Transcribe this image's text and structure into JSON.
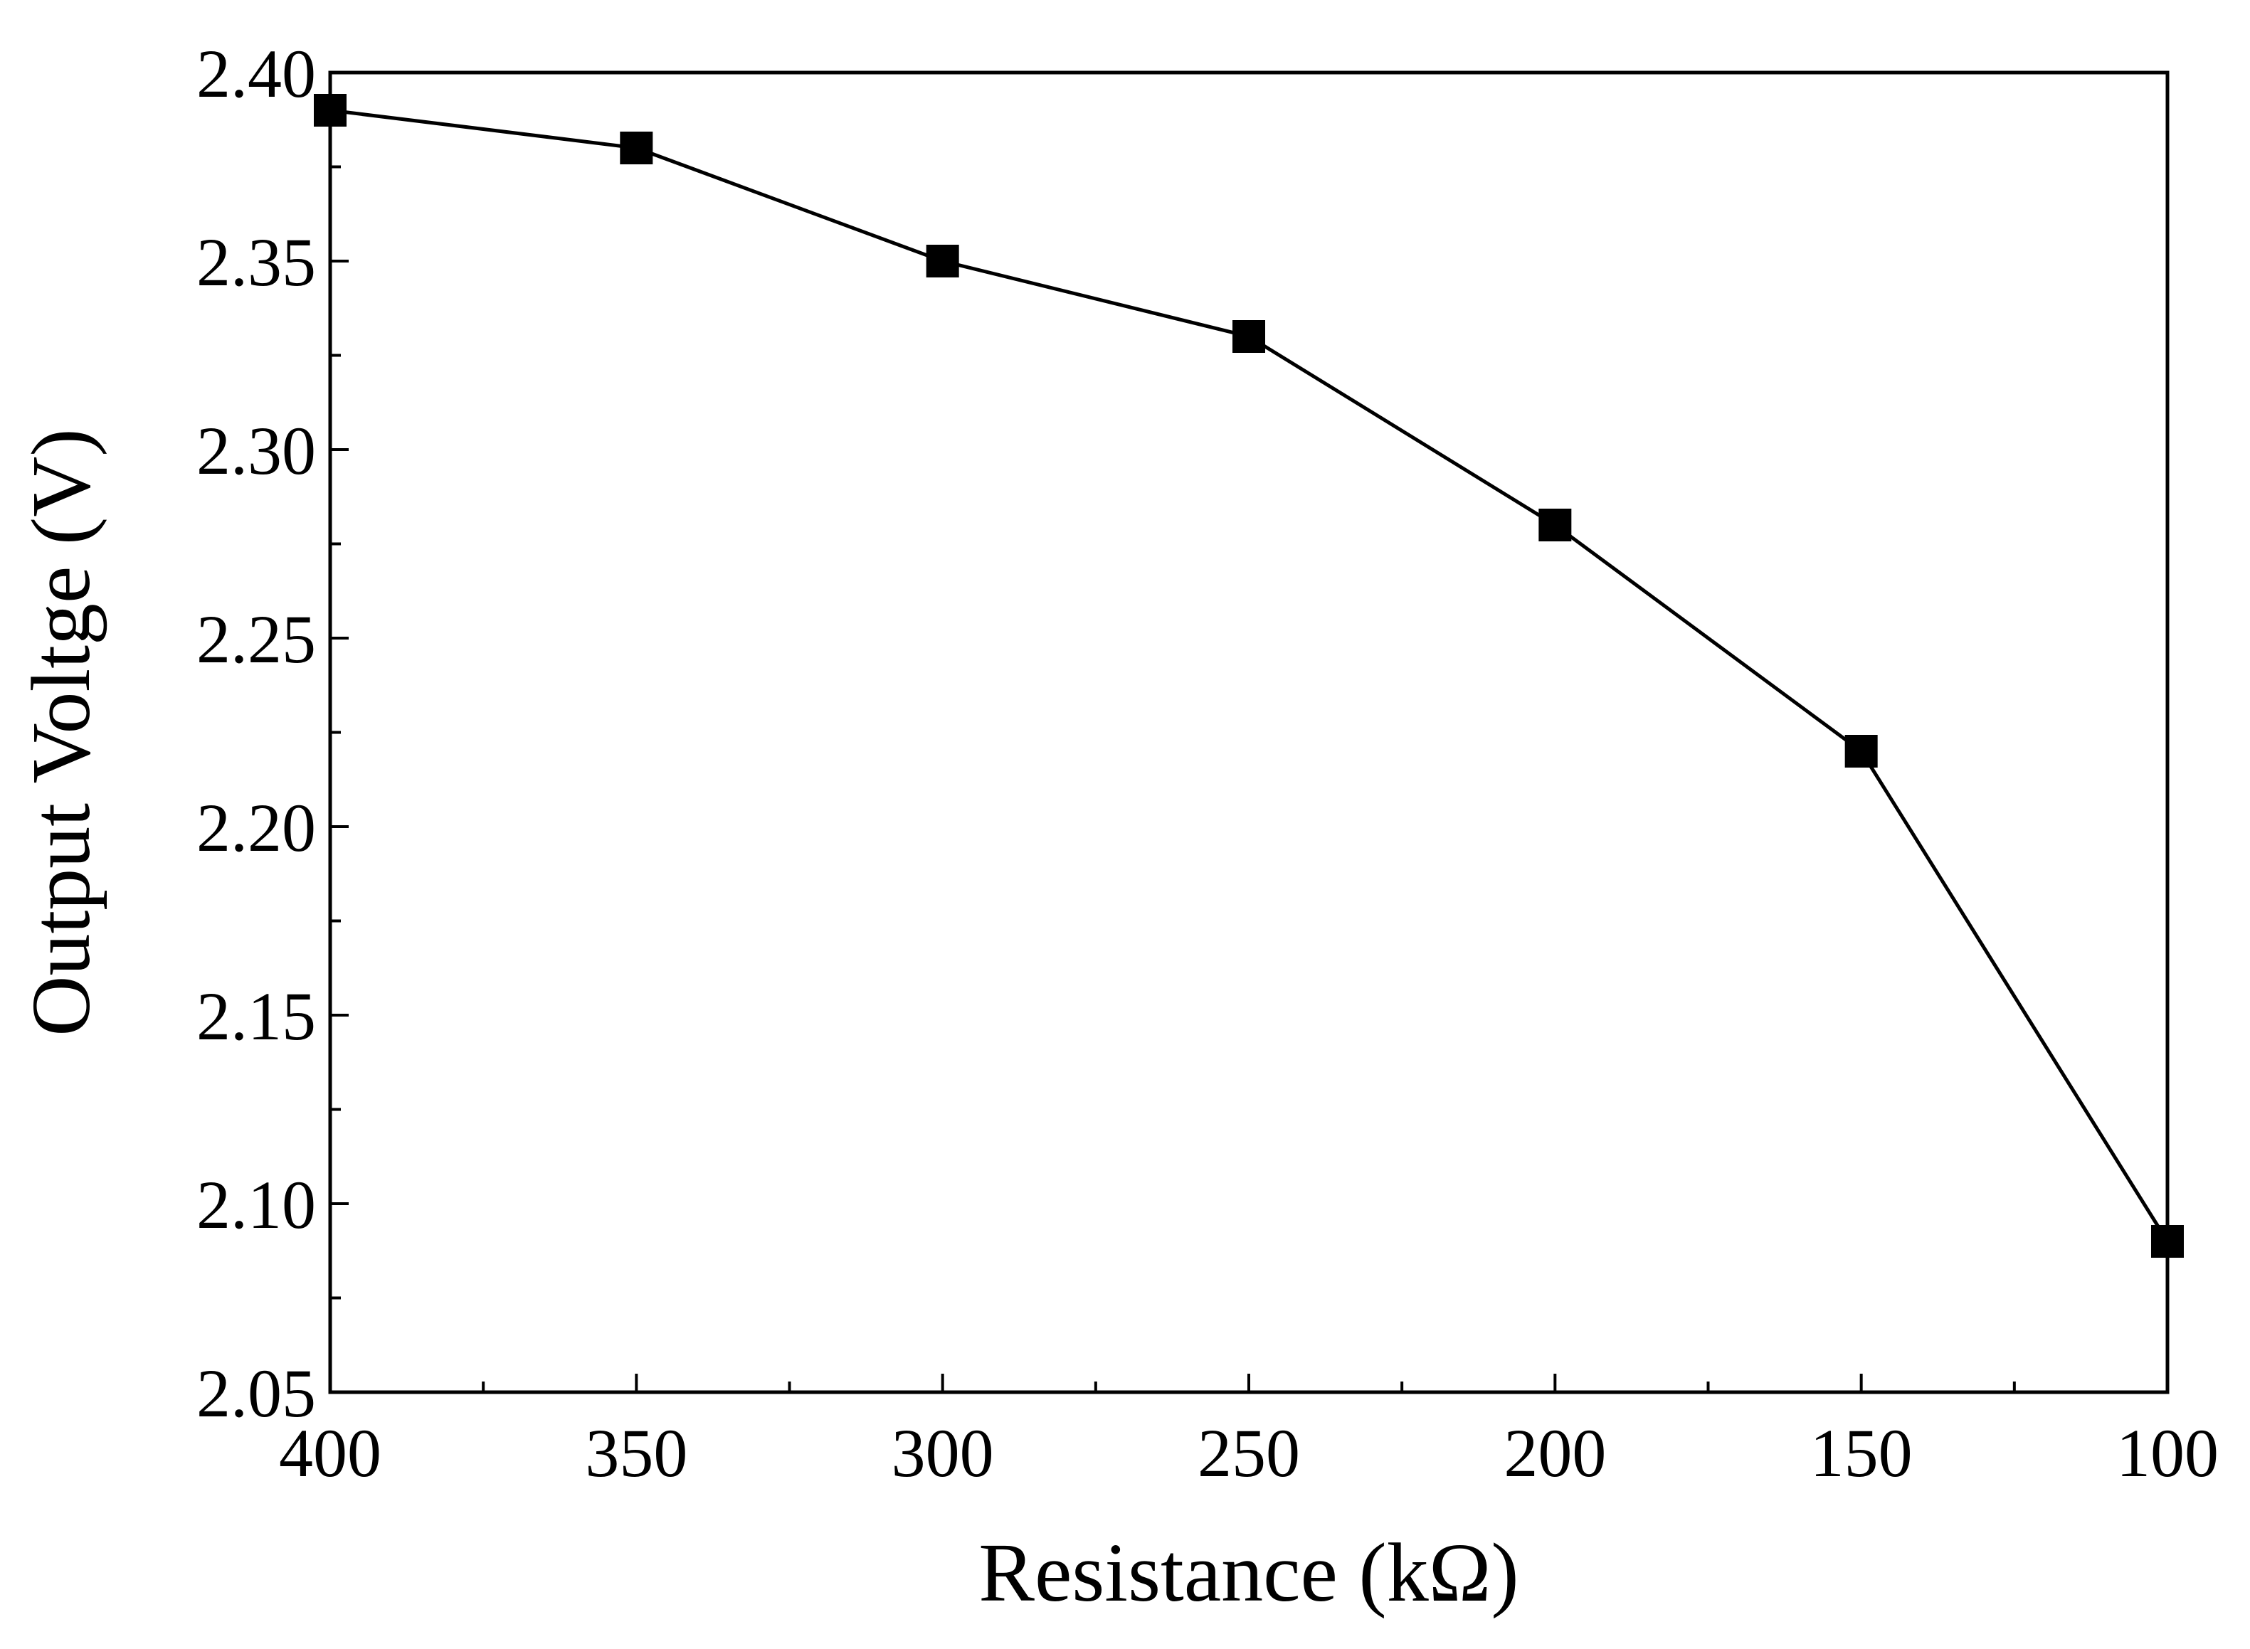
{
  "chart_data": {
    "type": "line",
    "title": "",
    "xlabel": "Resistance (kΩ)",
    "ylabel": "Output Voltge (V)",
    "x_reversed": true,
    "xlim": [
      400,
      100
    ],
    "ylim": [
      2.05,
      2.4
    ],
    "x_ticks": [
      "400",
      "350",
      "300",
      "250",
      "200",
      "150",
      "100"
    ],
    "x_tick_values": [
      400,
      350,
      300,
      250,
      200,
      150,
      100
    ],
    "y_ticks": [
      "2.05",
      "2.10",
      "2.15",
      "2.20",
      "2.25",
      "2.30",
      "2.35",
      "2.40"
    ],
    "y_tick_values": [
      2.05,
      2.1,
      2.15,
      2.2,
      2.25,
      2.3,
      2.35,
      2.4
    ],
    "grid": false,
    "legend": "none",
    "series": [
      {
        "marker": "square",
        "color": "#000000",
        "x": [
          400,
          350,
          300,
          250,
          200,
          150,
          100
        ],
        "y": [
          2.39,
          2.38,
          2.35,
          2.33,
          2.28,
          2.22,
          2.09
        ]
      }
    ]
  }
}
